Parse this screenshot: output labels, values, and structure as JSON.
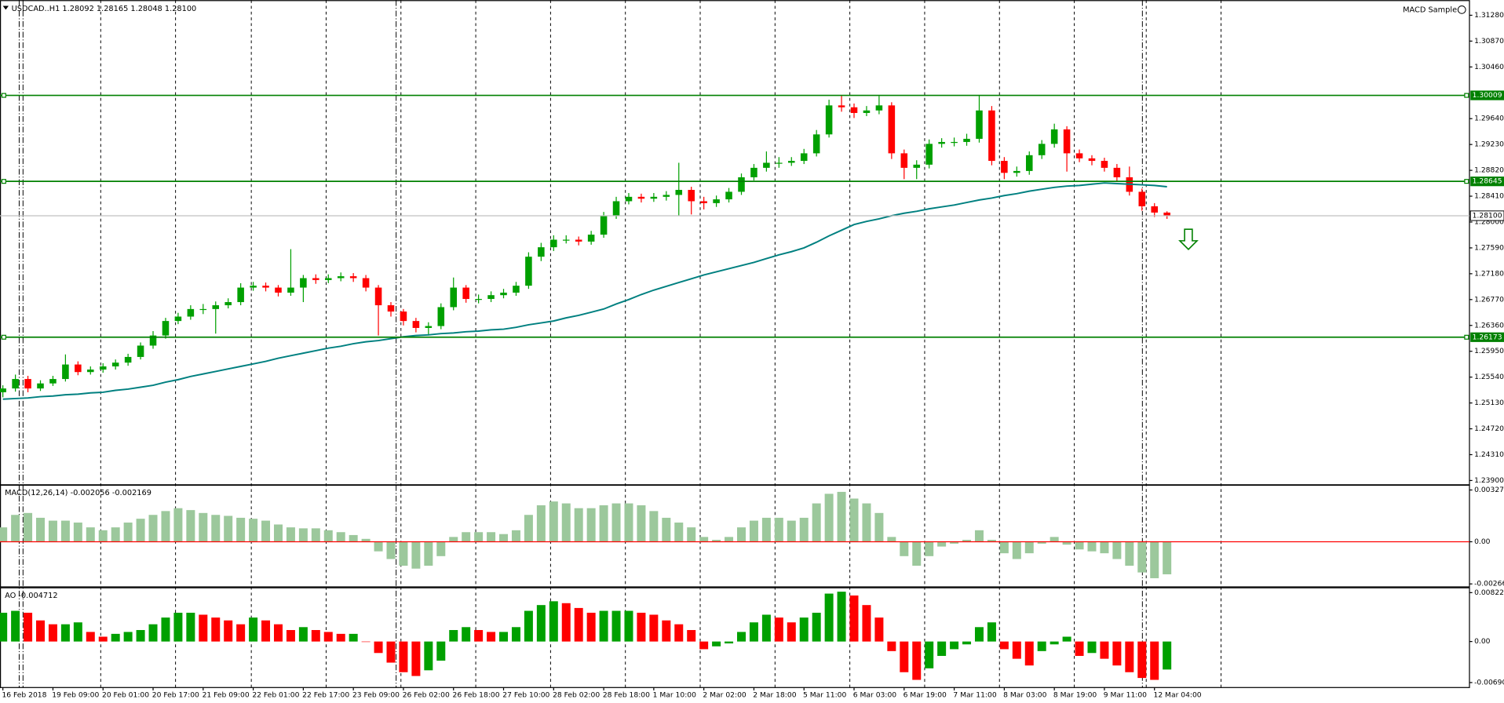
{
  "chart_data": [
    {
      "type": "candlestick",
      "title": "USDCAD..H1  1.28092 1.28165 1.28048 1.28100",
      "expert": "MACD Sample",
      "categories": [
        "16 Feb 2018",
        null,
        null,
        null,
        "19 Feb 09:00",
        null,
        null,
        null,
        "20 Feb 01:00",
        null,
        null,
        null,
        "20 Feb 17:00",
        null,
        null,
        null,
        "21 Feb 09:00",
        null,
        null,
        null,
        "22 Feb 01:00",
        null,
        null,
        null,
        "22 Feb 17:00",
        null,
        null,
        null,
        "23 Feb 09:00",
        null,
        null,
        null,
        "26 Feb 02:00",
        null,
        null,
        null,
        "26 Feb 18:00",
        null,
        null,
        null,
        "27 Feb 10:00",
        null,
        null,
        null,
        "28 Feb 02:00",
        null,
        null,
        null,
        "28 Feb 18:00",
        null,
        null,
        null,
        "1 Mar 10:00",
        null,
        null,
        null,
        "2 Mar 02:00",
        null,
        null,
        null,
        "2 Mar 18:00",
        null,
        null,
        null,
        "5 Mar 11:00",
        null,
        null,
        null,
        "6 Mar 03:00",
        null,
        null,
        null,
        "6 Mar 19:00",
        null,
        null,
        null,
        "7 Mar 11:00",
        null,
        null,
        null,
        "8 Mar 03:00",
        null,
        null,
        null,
        "8 Mar 19:00",
        null,
        null,
        null,
        "9 Mar 11:00",
        null,
        null,
        null,
        "12 Mar 04:00",
        null
      ],
      "open": [
        1.253,
        1.2536,
        1.2551,
        1.2536,
        1.2544,
        1.2551,
        1.2574,
        1.2562,
        1.2566,
        1.2571,
        1.2577,
        1.2586,
        1.2604,
        1.262,
        1.2643,
        1.265,
        1.2662,
        1.2662,
        1.2668,
        1.2673,
        1.2696,
        1.2699,
        1.2696,
        1.2688,
        1.2696,
        1.2711,
        1.2708,
        1.2711,
        1.2714,
        1.2711,
        1.2696,
        1.2668,
        1.2658,
        1.2643,
        1.2632,
        1.2635,
        1.2665,
        1.2696,
        1.2678,
        1.2678,
        1.2684,
        1.2688,
        1.2699,
        1.2745,
        1.276,
        1.2772,
        1.2772,
        1.2769,
        1.278,
        1.281,
        1.2833,
        1.284,
        1.2837,
        1.284,
        1.2843,
        1.2851,
        1.2833,
        1.283,
        1.2836,
        1.2848,
        1.2871,
        1.2886,
        1.2894,
        1.2894,
        1.2897,
        1.2909,
        1.2939,
        1.2985,
        1.2982,
        1.2973,
        1.2977,
        1.2985,
        1.2909,
        1.2886,
        1.2891,
        1.2924,
        1.2927,
        1.2927,
        1.2932,
        1.2977,
        1.2897,
        1.2878,
        1.2881,
        1.2906,
        1.2924,
        1.2947,
        1.2909,
        1.2901,
        1.2897,
        1.2886,
        1.2871,
        1.2848,
        1.2825,
        1.2815
      ],
      "high": [
        1.2541,
        1.2558,
        1.2556,
        1.2549,
        1.2556,
        1.259,
        1.2579,
        1.2571,
        1.2576,
        1.2582,
        1.2591,
        1.2609,
        1.2627,
        1.2648,
        1.2656,
        1.2668,
        1.267,
        1.2674,
        1.2679,
        1.2703,
        1.2705,
        1.2704,
        1.27,
        1.2757,
        1.2716,
        1.2717,
        1.2717,
        1.272,
        1.2719,
        1.2716,
        1.27,
        1.2673,
        1.2662,
        1.2648,
        1.2641,
        1.2671,
        1.2712,
        1.27,
        1.2685,
        1.269,
        1.2694,
        1.2705,
        1.2752,
        1.2767,
        1.2779,
        1.2779,
        1.2777,
        1.2786,
        1.2816,
        1.284,
        1.2846,
        1.2845,
        1.2846,
        1.2849,
        1.2894,
        1.2856,
        1.284,
        1.2842,
        1.2854,
        1.2877,
        1.2892,
        1.2912,
        1.2903,
        1.2903,
        1.2916,
        1.2946,
        1.2994,
        1.3001,
        1.2988,
        1.2984,
        1.3,
        1.299,
        1.2915,
        1.2898,
        1.2931,
        1.2933,
        1.2934,
        1.294,
        1.3001,
        1.2984,
        1.2903,
        1.2888,
        1.2912,
        1.293,
        1.2956,
        1.2952,
        1.2915,
        1.2906,
        1.2902,
        1.2892,
        1.2888,
        1.2853,
        1.283,
        1.2817
      ],
      "low": [
        1.2522,
        1.2531,
        1.253,
        1.2532,
        1.254,
        1.2547,
        1.2557,
        1.2558,
        1.2561,
        1.2566,
        1.2572,
        1.2582,
        1.2599,
        1.2615,
        1.2638,
        1.2645,
        1.2654,
        1.2623,
        1.2663,
        1.2668,
        1.2691,
        1.269,
        1.2682,
        1.2683,
        1.2673,
        1.2702,
        1.2703,
        1.2706,
        1.2705,
        1.269,
        1.262,
        1.265,
        1.2636,
        1.2625,
        1.262,
        1.263,
        1.266,
        1.2672,
        1.2671,
        1.2673,
        1.2679,
        1.2683,
        1.2694,
        1.2738,
        1.2754,
        1.2766,
        1.2763,
        1.2764,
        1.2775,
        1.2805,
        1.2828,
        1.2831,
        1.2832,
        1.2834,
        1.281,
        1.2812,
        1.282,
        1.2824,
        1.2831,
        1.2843,
        1.2866,
        1.288,
        1.2886,
        1.2889,
        1.2892,
        1.2904,
        1.2934,
        1.2975,
        1.2965,
        1.2968,
        1.2971,
        1.29,
        1.2868,
        1.2868,
        1.2885,
        1.2918,
        1.292,
        1.2921,
        1.2926,
        1.289,
        1.2868,
        1.2872,
        1.2875,
        1.29,
        1.2918,
        1.288,
        1.2895,
        1.289,
        1.288,
        1.2864,
        1.2842,
        1.2818,
        1.2808,
        1.2805
      ],
      "close": [
        1.2536,
        1.2551,
        1.2536,
        1.2544,
        1.2551,
        1.2574,
        1.2562,
        1.2566,
        1.2571,
        1.2577,
        1.2586,
        1.2604,
        1.262,
        1.2643,
        1.265,
        1.2662,
        1.2662,
        1.2668,
        1.2673,
        1.2696,
        1.2699,
        1.2696,
        1.2688,
        1.2696,
        1.2711,
        1.2708,
        1.2711,
        1.2714,
        1.2711,
        1.2696,
        1.2668,
        1.2658,
        1.2643,
        1.2632,
        1.2635,
        1.2665,
        1.2696,
        1.2678,
        1.2678,
        1.2684,
        1.2688,
        1.2699,
        1.2745,
        1.276,
        1.2772,
        1.2772,
        1.2769,
        1.278,
        1.281,
        1.2833,
        1.284,
        1.2837,
        1.284,
        1.2843,
        1.2851,
        1.2833,
        1.283,
        1.2836,
        1.2848,
        1.2871,
        1.2886,
        1.2894,
        1.2894,
        1.2897,
        1.2909,
        1.2939,
        1.2985,
        1.2982,
        1.2973,
        1.2977,
        1.2985,
        1.2909,
        1.2886,
        1.2891,
        1.2924,
        1.2927,
        1.2927,
        1.2932,
        1.2977,
        1.2897,
        1.2878,
        1.2881,
        1.2906,
        1.2924,
        1.2947,
        1.2909,
        1.2901,
        1.2897,
        1.2886,
        1.2871,
        1.2848,
        1.2825,
        1.2815,
        1.281
      ],
      "up_color": "#00a000",
      "down_color": "#ff0000",
      "ma": {
        "color": "#008080",
        "values": [
          1.2519,
          1.252,
          1.2521,
          1.2523,
          1.2524,
          1.2526,
          1.2527,
          1.2529,
          1.253,
          1.2533,
          1.2535,
          1.2538,
          1.2541,
          1.2546,
          1.255,
          1.2555,
          1.2559,
          1.2563,
          1.2567,
          1.2571,
          1.2575,
          1.2579,
          1.2584,
          1.2588,
          1.2592,
          1.2596,
          1.26,
          1.2603,
          1.2607,
          1.261,
          1.2612,
          1.2615,
          1.2618,
          1.262,
          1.2621,
          1.2623,
          1.2624,
          1.2626,
          1.2627,
          1.2629,
          1.263,
          1.2633,
          1.2637,
          1.264,
          1.2643,
          1.2648,
          1.2652,
          1.2657,
          1.2662,
          1.267,
          1.2677,
          1.2685,
          1.2692,
          1.2698,
          1.2704,
          1.271,
          1.2716,
          1.2721,
          1.2726,
          1.2731,
          1.2736,
          1.2742,
          1.2748,
          1.2753,
          1.2759,
          1.2768,
          1.2778,
          1.2787,
          1.2796,
          1.2801,
          1.2805,
          1.281,
          1.2814,
          1.2817,
          1.2821,
          1.2824,
          1.2827,
          1.2831,
          1.2835,
          1.2838,
          1.2842,
          1.2845,
          1.2849,
          1.2852,
          1.2855,
          1.2857,
          1.2858,
          1.286,
          1.2862,
          1.2861,
          1.286,
          1.2859,
          1.2858,
          1.2856
        ]
      },
      "levels": [
        1.30009,
        1.28645,
        1.26173
      ],
      "level_color": "#008000",
      "bid": {
        "value": 1.281,
        "label": "1.28100"
      },
      "ylim": [
        1.2384,
        1.3152
      ],
      "yticks": [
        {
          "value": 1.239,
          "label": "1.23900"
        },
        {
          "value": 1.2431,
          "label": "1.24310"
        },
        {
          "value": 1.2472,
          "label": "1.24720"
        },
        {
          "value": 1.2513,
          "label": "1.25130"
        },
        {
          "value": 1.2554,
          "label": "1.25540"
        },
        {
          "value": 1.2595,
          "label": "1.25950"
        },
        {
          "value": 1.2636,
          "label": "1.26360"
        },
        {
          "value": 1.2677,
          "label": "1.26770"
        },
        {
          "value": 1.2718,
          "label": "1.27180"
        },
        {
          "value": 1.2759,
          "label": "1.27590"
        },
        {
          "value": 1.28,
          "label": "1.28000"
        },
        {
          "value": 1.2841,
          "label": "1.28410"
        },
        {
          "value": 1.2882,
          "label": "1.28820"
        },
        {
          "value": 1.2923,
          "label": "1.29230"
        },
        {
          "value": 1.2964,
          "label": "1.29640"
        },
        {
          "value": 1.3046,
          "label": "1.30460"
        },
        {
          "value": 1.3087,
          "label": "1.30870"
        },
        {
          "value": 1.3128,
          "label": "1.31280"
        }
      ]
    },
    {
      "type": "histogram",
      "title": "MACD(12,26,14) -0.002056 -0.002169",
      "color": "#9cc89c",
      "zero_line_color": "#ff0000",
      "values": [
        0.000909,
        0.001697,
        0.001818,
        0.001515,
        0.001333,
        0.001333,
        0.001212,
        0.000909,
        0.000727,
        0.000909,
        0.001212,
        0.001454,
        0.001697,
        0.001939,
        0.002121,
        0.002,
        0.001818,
        0.001697,
        0.001636,
        0.001515,
        0.001454,
        0.001333,
        0.001091,
        0.000909,
        0.000848,
        0.000848,
        0.000727,
        0.000606,
        0.000424,
        0.000182,
        -0.000606,
        -0.001091,
        -0.001515,
        -0.001697,
        -0.001515,
        -0.000909,
        0.000303,
        0.000606,
        0.000606,
        0.000606,
        0.000485,
        0.000727,
        0.001697,
        0.002303,
        0.002545,
        0.002424,
        0.002121,
        0.002121,
        0.002303,
        0.002424,
        0.002424,
        0.002303,
        0.001939,
        0.001515,
        0.001212,
        0.000909,
        0.000303,
        0.000121,
        0.000303,
        0.000909,
        0.001333,
        0.001515,
        0.001515,
        0.001333,
        0.001515,
        0.002424,
        0.00303,
        0.003151,
        0.002727,
        0.002424,
        0.001818,
        0.000303,
        -0.000909,
        -0.001515,
        -0.000909,
        -0.000303,
        -0.000121,
        0.000121,
        0.000727,
        0.000121,
        -0.000727,
        -0.001091,
        -0.000727,
        -0.000121,
        0.000303,
        -0.000182,
        -0.000485,
        -0.000606,
        -0.000727,
        -0.001091,
        -0.001515,
        -0.001939,
        -0.002303,
        -0.002056
      ],
      "ylim": [
        -0.00285,
        0.00357
      ],
      "yticks": [
        0.003271,
        {
          "value": 0,
          "label": "0.00"
        },
        -0.002663
      ]
    },
    {
      "type": "ao",
      "title": "AO -0.004712",
      "up_color": "#00a000",
      "down_color": "#ff0000",
      "values": [
        0.00484,
        0.00516,
        0.00484,
        0.00355,
        0.0029,
        0.0029,
        0.00322,
        0.00161,
        0.00081,
        0.00129,
        0.00161,
        0.00193,
        0.0029,
        0.00403,
        0.00484,
        0.00484,
        0.00451,
        0.00403,
        0.00355,
        0.0029,
        0.00403,
        0.00355,
        0.0029,
        0.00193,
        0.00242,
        0.00193,
        0.00161,
        0.00129,
        0.00129,
        0,
        -0.00193,
        -0.00355,
        -0.00516,
        -0.0058,
        -0.00484,
        -0.00322,
        0.00193,
        0.00242,
        0.00193,
        0.00161,
        0.00161,
        0.00242,
        0.00516,
        0.00613,
        0.00677,
        0.00645,
        0.00564,
        0.00484,
        0.00516,
        0.00516,
        0.00516,
        0.00484,
        0.00451,
        0.00355,
        0.0029,
        0.00193,
        -0.00129,
        -0.00081,
        -0.00032,
        0.00161,
        0.00322,
        0.00451,
        0.00403,
        0.00322,
        0.00403,
        0.00484,
        0.00806,
        0.00838,
        0.00774,
        0.00613,
        0.00403,
        -0.00161,
        -0.00516,
        -0.00645,
        -0.00451,
        -0.00242,
        -0.00129,
        -0.00048,
        0.00242,
        0.00322,
        -0.00129,
        -0.0029,
        -0.00403,
        -0.00161,
        -0.00048,
        0.00081,
        -0.00242,
        -0.00193,
        -0.0029,
        -0.00403,
        -0.00516,
        -0.00613,
        -0.00645,
        -0.004712
      ],
      "ylim": [
        -0.00774,
        0.00903
      ],
      "yticks": [
        0.008222,
        {
          "value": 0,
          "label": "0.00"
        },
        -0.006902
      ]
    }
  ]
}
